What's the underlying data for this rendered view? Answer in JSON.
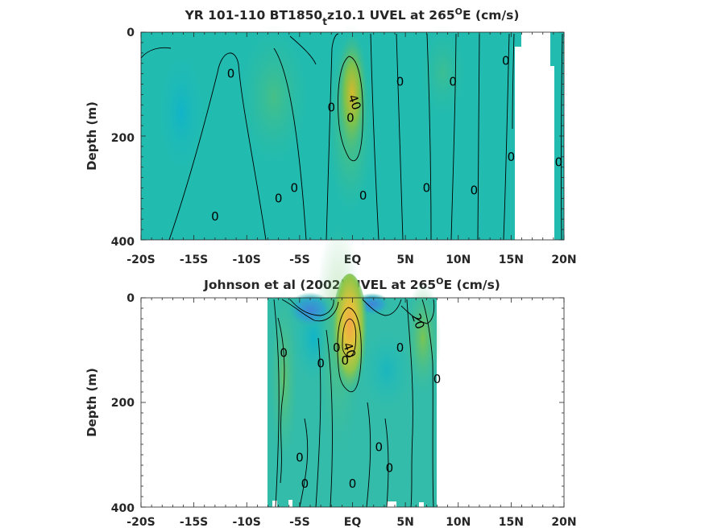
{
  "chart_data": [
    {
      "type": "heatmap",
      "title_parts": {
        "main": "YR 101-110 BT1850",
        "sub": "t",
        "rest": "z10.1 UVEL at 265",
        "sup": "O",
        "end": "E (cm/s)"
      },
      "title": "YR 101-110 BT1850_tz10.1 UVEL at 265°E (cm/s)",
      "xlabel": "",
      "ylabel": "Depth (m)",
      "xlim": [
        -20,
        20
      ],
      "ylim": [
        400,
        0
      ],
      "x_ticks": [
        -20,
        -15,
        -10,
        -5,
        0,
        5,
        10,
        15,
        20
      ],
      "x_tick_labels": [
        "-20S",
        "-15S",
        "-10S",
        "-5S",
        "EQ",
        "5N",
        "10N",
        "15N",
        "20N"
      ],
      "y_ticks": [
        0,
        200,
        400
      ],
      "y_tick_labels": [
        "0",
        "200",
        "400"
      ],
      "data_extent": [
        -20,
        15.5
      ],
      "contour_labels": [
        {
          "text": "0",
          "x": -11.5,
          "y": 80
        },
        {
          "text": "0",
          "x": -5.5,
          "y": 300
        },
        {
          "text": "0",
          "x": -7,
          "y": 320
        },
        {
          "text": "0",
          "x": -13,
          "y": 355
        },
        {
          "text": "0",
          "x": -2,
          "y": 145
        },
        {
          "text": "0",
          "x": -0.2,
          "y": 165
        },
        {
          "text": "40",
          "x": 0.2,
          "y": 135
        },
        {
          "text": "0",
          "x": 1,
          "y": 315
        },
        {
          "text": "0",
          "x": 4.5,
          "y": 95
        },
        {
          "text": "0",
          "x": 7,
          "y": 300
        },
        {
          "text": "0",
          "x": 9.5,
          "y": 95
        },
        {
          "text": "0",
          "x": 11.5,
          "y": 305
        },
        {
          "text": "0",
          "x": 14.5,
          "y": 55
        },
        {
          "text": "0",
          "x": 15,
          "y": 240
        },
        {
          "text": "0",
          "x": 19.5,
          "y": 250
        }
      ]
    },
    {
      "type": "heatmap",
      "title_parts": {
        "main": "Johnson et al (2002) UVEL at 265",
        "sup": "O",
        "end": "E (cm/s)"
      },
      "title": "Johnson et al (2002) UVEL at 265°E (cm/s)",
      "xlabel": "",
      "ylabel": "Depth (m)",
      "xlim": [
        -20,
        20
      ],
      "ylim": [
        400,
        0
      ],
      "x_ticks": [
        -20,
        -15,
        -10,
        -5,
        0,
        5,
        10,
        15,
        20
      ],
      "x_tick_labels": [
        "-20S",
        "-15S",
        "-10S",
        "-5S",
        "EQ",
        "5N",
        "10N",
        "15N",
        "20N"
      ],
      "y_ticks": [
        0,
        200,
        400
      ],
      "y_tick_labels": [
        "0",
        "200",
        "400"
      ],
      "data_extent": [
        -8,
        8
      ],
      "contour_labels": [
        {
          "text": "0",
          "x": -6.5,
          "y": 105
        },
        {
          "text": "0",
          "x": -3,
          "y": 125
        },
        {
          "text": "0",
          "x": -1.5,
          "y": 95
        },
        {
          "text": "0",
          "x": -0.7,
          "y": 120
        },
        {
          "text": "40",
          "x": -0.3,
          "y": 100
        },
        {
          "text": "0",
          "x": 4.5,
          "y": 95
        },
        {
          "text": "20",
          "x": 6.2,
          "y": 45
        },
        {
          "text": "0",
          "x": 8,
          "y": 155
        },
        {
          "text": "0",
          "x": 2.5,
          "y": 285
        },
        {
          "text": "0",
          "x": 3.5,
          "y": 325
        },
        {
          "text": "0",
          "x": -5,
          "y": 305
        },
        {
          "text": "0",
          "x": -4.5,
          "y": 355
        },
        {
          "text": "0",
          "x": 0,
          "y": 355
        }
      ]
    }
  ]
}
